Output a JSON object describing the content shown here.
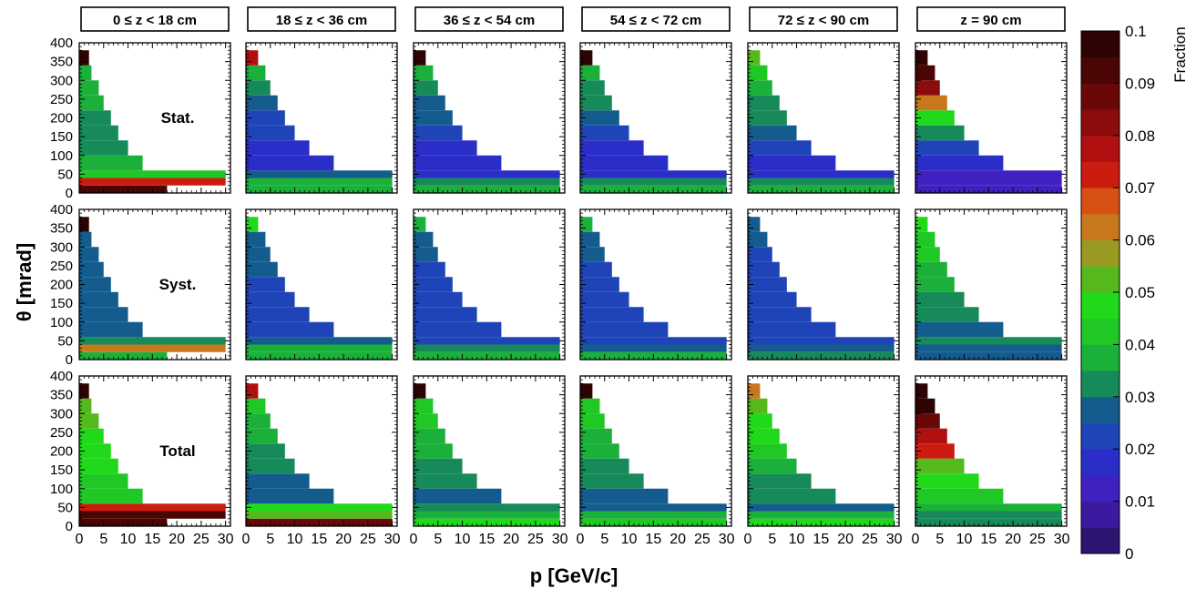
{
  "figure": {
    "y_axis_title": "θ [mrad]",
    "x_axis_title": "p [GeV/c]",
    "colorbar": {
      "label": "Fraction",
      "min": 0,
      "max": 0.1,
      "tick_labels": [
        "0",
        "0.01",
        "0.02",
        "0.03",
        "0.04",
        "0.05",
        "0.06",
        "0.07",
        "0.08",
        "0.09",
        "0.1"
      ],
      "colors": [
        "#2d1470",
        "#3c1aa0",
        "#4020c0",
        "#2a2dc8",
        "#1f44b8",
        "#155c8e",
        "#168a58",
        "#1bb03a",
        "#1fc825",
        "#20d91a",
        "#55b91e",
        "#9a9a22",
        "#c8781c",
        "#d85014",
        "#cc1c10",
        "#b01010",
        "#8a0c0c",
        "#6a0808",
        "#4a0505",
        "#2e0303"
      ]
    },
    "columns": [
      "0 ≤ z < 18 cm",
      "18 ≤ z < 36 cm",
      "36 ≤ z < 54 cm",
      "54 ≤ z < 72 cm",
      "72 ≤ z < 90 cm",
      "z = 90 cm"
    ],
    "rows": [
      "Stat.",
      "Syst.",
      "Total"
    ]
  },
  "chart_data": {
    "type": "heatmap",
    "description_axes": {
      "x": "p [GeV/c]",
      "y": "θ [mrad]",
      "z": "Fraction"
    },
    "xlim": [
      0,
      31
    ],
    "ylim": [
      0,
      400
    ],
    "x_ticks": [
      0,
      5,
      10,
      15,
      20,
      25,
      30
    ],
    "y_ticks": [
      0,
      50,
      100,
      150,
      200,
      250,
      300,
      350,
      400
    ],
    "zlim": [
      0,
      0.1
    ],
    "theta_bands": [
      {
        "y": [
          0,
          20
        ],
        "pmax": [
          18,
          30,
          30,
          30,
          30,
          30
        ]
      },
      {
        "y": [
          20,
          40
        ],
        "pmax": [
          30,
          30,
          30,
          30,
          30,
          30
        ]
      },
      {
        "y": [
          40,
          60
        ],
        "pmax": [
          30,
          30,
          30,
          30,
          30,
          30
        ]
      },
      {
        "y": [
          60,
          100
        ],
        "pmax": [
          13,
          18,
          18,
          18,
          18,
          18
        ]
      },
      {
        "y": [
          100,
          140
        ],
        "pmax": [
          10,
          13,
          13,
          13,
          13,
          13
        ]
      },
      {
        "y": [
          140,
          180
        ],
        "pmax": [
          8,
          10,
          10,
          10,
          10,
          10
        ]
      },
      {
        "y": [
          180,
          220
        ],
        "pmax": [
          6.5,
          8,
          8,
          8,
          8,
          8
        ]
      },
      {
        "y": [
          220,
          260
        ],
        "pmax": [
          5,
          6.5,
          6.5,
          6.5,
          6.5,
          6.5
        ]
      },
      {
        "y": [
          260,
          300
        ],
        "pmax": [
          4,
          5,
          5,
          5,
          5,
          5
        ]
      },
      {
        "y": [
          300,
          340
        ],
        "pmax": [
          2.5,
          4,
          4,
          4,
          4,
          4
        ]
      },
      {
        "y": [
          340,
          380
        ],
        "pmax": [
          2,
          2.5,
          2.5,
          2.5,
          2.5,
          2.5
        ]
      }
    ],
    "panels": [
      {
        "row": "Stat.",
        "column": "0 ≤ z < 18 cm",
        "band_values": [
          0.09,
          0.075,
          0.042,
          0.036,
          0.033,
          0.034,
          0.033,
          0.035,
          0.037,
          0.04,
          0.1
        ]
      },
      {
        "row": "Stat.",
        "column": "18 ≤ z < 36 cm",
        "band_values": [
          0.04,
          0.035,
          0.027,
          0.017,
          0.018,
          0.021,
          0.024,
          0.026,
          0.031,
          0.035,
          0.08
        ]
      },
      {
        "row": "Stat.",
        "column": "36 ≤ z < 54 cm",
        "band_values": [
          0.038,
          0.03,
          0.017,
          0.015,
          0.019,
          0.022,
          0.025,
          0.029,
          0.032,
          0.036,
          0.1
        ]
      },
      {
        "row": "Stat.",
        "column": "54 ≤ z < 72 cm",
        "band_values": [
          0.038,
          0.03,
          0.018,
          0.016,
          0.02,
          0.023,
          0.026,
          0.03,
          0.033,
          0.037,
          0.095
        ]
      },
      {
        "row": "Stat.",
        "column": "72 ≤ z < 90 cm",
        "band_values": [
          0.04,
          0.033,
          0.018,
          0.018,
          0.022,
          0.025,
          0.03,
          0.034,
          0.037,
          0.042,
          0.05
        ]
      },
      {
        "row": "Stat.",
        "column": "z = 90 cm",
        "band_values": [
          0.012,
          0.012,
          0.013,
          0.02,
          0.024,
          0.034,
          0.045,
          0.061,
          0.082,
          0.09,
          0.095
        ]
      },
      {
        "row": "Syst.",
        "column": "0 ≤ z < 18 cm",
        "band_values": [
          0.04,
          0.06,
          0.03,
          0.026,
          0.027,
          0.028,
          0.028,
          0.028,
          0.028,
          0.028,
          0.1
        ]
      },
      {
        "row": "Syst.",
        "column": "18 ≤ z < 36 cm",
        "band_values": [
          0.04,
          0.038,
          0.027,
          0.021,
          0.022,
          0.022,
          0.024,
          0.026,
          0.027,
          0.028,
          0.045
        ]
      },
      {
        "row": "Syst.",
        "column": "36 ≤ z < 54 cm",
        "band_values": [
          0.038,
          0.03,
          0.021,
          0.021,
          0.021,
          0.022,
          0.022,
          0.023,
          0.025,
          0.027,
          0.04
        ]
      },
      {
        "row": "Syst.",
        "column": "54 ≤ z < 72 cm",
        "band_values": [
          0.036,
          0.028,
          0.021,
          0.021,
          0.021,
          0.022,
          0.022,
          0.023,
          0.025,
          0.027,
          0.038
        ]
      },
      {
        "row": "Syst.",
        "column": "72 ≤ z < 90 cm",
        "band_values": [
          0.03,
          0.026,
          0.021,
          0.021,
          0.021,
          0.022,
          0.022,
          0.023,
          0.024,
          0.025,
          0.027
        ]
      },
      {
        "row": "Syst.",
        "column": "z = 90 cm",
        "band_values": [
          0.026,
          0.028,
          0.03,
          0.029,
          0.031,
          0.033,
          0.036,
          0.039,
          0.041,
          0.043,
          0.045
        ]
      },
      {
        "row": "Total",
        "column": "0 ≤ z < 18 cm",
        "band_values": [
          0.09,
          0.092,
          0.075,
          0.042,
          0.043,
          0.045,
          0.046,
          0.048,
          0.05,
          0.05,
          0.1
        ]
      },
      {
        "row": "Total",
        "column": "18 ≤ z < 36 cm",
        "band_values": [
          0.085,
          0.055,
          0.046,
          0.028,
          0.029,
          0.031,
          0.034,
          0.037,
          0.039,
          0.041,
          0.08
        ]
      },
      {
        "row": "Total",
        "column": "36 ≤ z < 54 cm",
        "band_values": [
          0.045,
          0.04,
          0.03,
          0.028,
          0.03,
          0.033,
          0.036,
          0.039,
          0.041,
          0.043,
          0.1
        ]
      },
      {
        "row": "Total",
        "column": "54 ≤ z < 72 cm",
        "band_values": [
          0.043,
          0.038,
          0.028,
          0.028,
          0.031,
          0.034,
          0.037,
          0.04,
          0.042,
          0.044,
          0.095
        ]
      },
      {
        "row": "Total",
        "column": "72 ≤ z < 90 cm",
        "band_values": [
          0.045,
          0.036,
          0.029,
          0.031,
          0.034,
          0.038,
          0.042,
          0.045,
          0.048,
          0.05,
          0.06
        ]
      },
      {
        "row": "Total",
        "column": "z = 90 cm",
        "band_values": [
          0.03,
          0.032,
          0.038,
          0.044,
          0.048,
          0.055,
          0.07,
          0.078,
          0.088,
          0.095,
          0.1
        ]
      }
    ]
  }
}
